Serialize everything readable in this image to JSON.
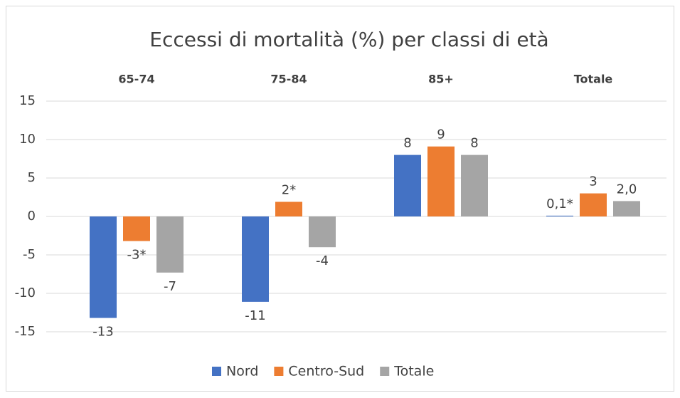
{
  "chart_data": {
    "type": "bar",
    "title": "Eccessi di mortalità (%) per classi di età",
    "categories": [
      "65-74",
      "75-84",
      "85+",
      "Totale"
    ],
    "series": [
      {
        "name": "Nord",
        "color": "#4472c4",
        "values": [
          -13.2,
          -11.1,
          8,
          0.1
        ],
        "value_labels": [
          "-13",
          "-11",
          "8",
          "0,1*"
        ]
      },
      {
        "name": "Centro-Sud",
        "color": "#ed7d31",
        "values": [
          -3.2,
          1.9,
          9.1,
          3
        ],
        "value_labels": [
          "-3*",
          "2*",
          "9",
          "3"
        ]
      },
      {
        "name": "Totale",
        "color": "#a5a5a5",
        "values": [
          -7.3,
          -4,
          8,
          2
        ],
        "value_labels": [
          "-7",
          "-4",
          "8",
          "2,0"
        ]
      }
    ],
    "ylim": [
      -15,
      15
    ],
    "yticks": [
      15,
      10,
      5,
      0,
      -5,
      -10,
      -15
    ],
    "grid": true,
    "legend": "bottom"
  }
}
